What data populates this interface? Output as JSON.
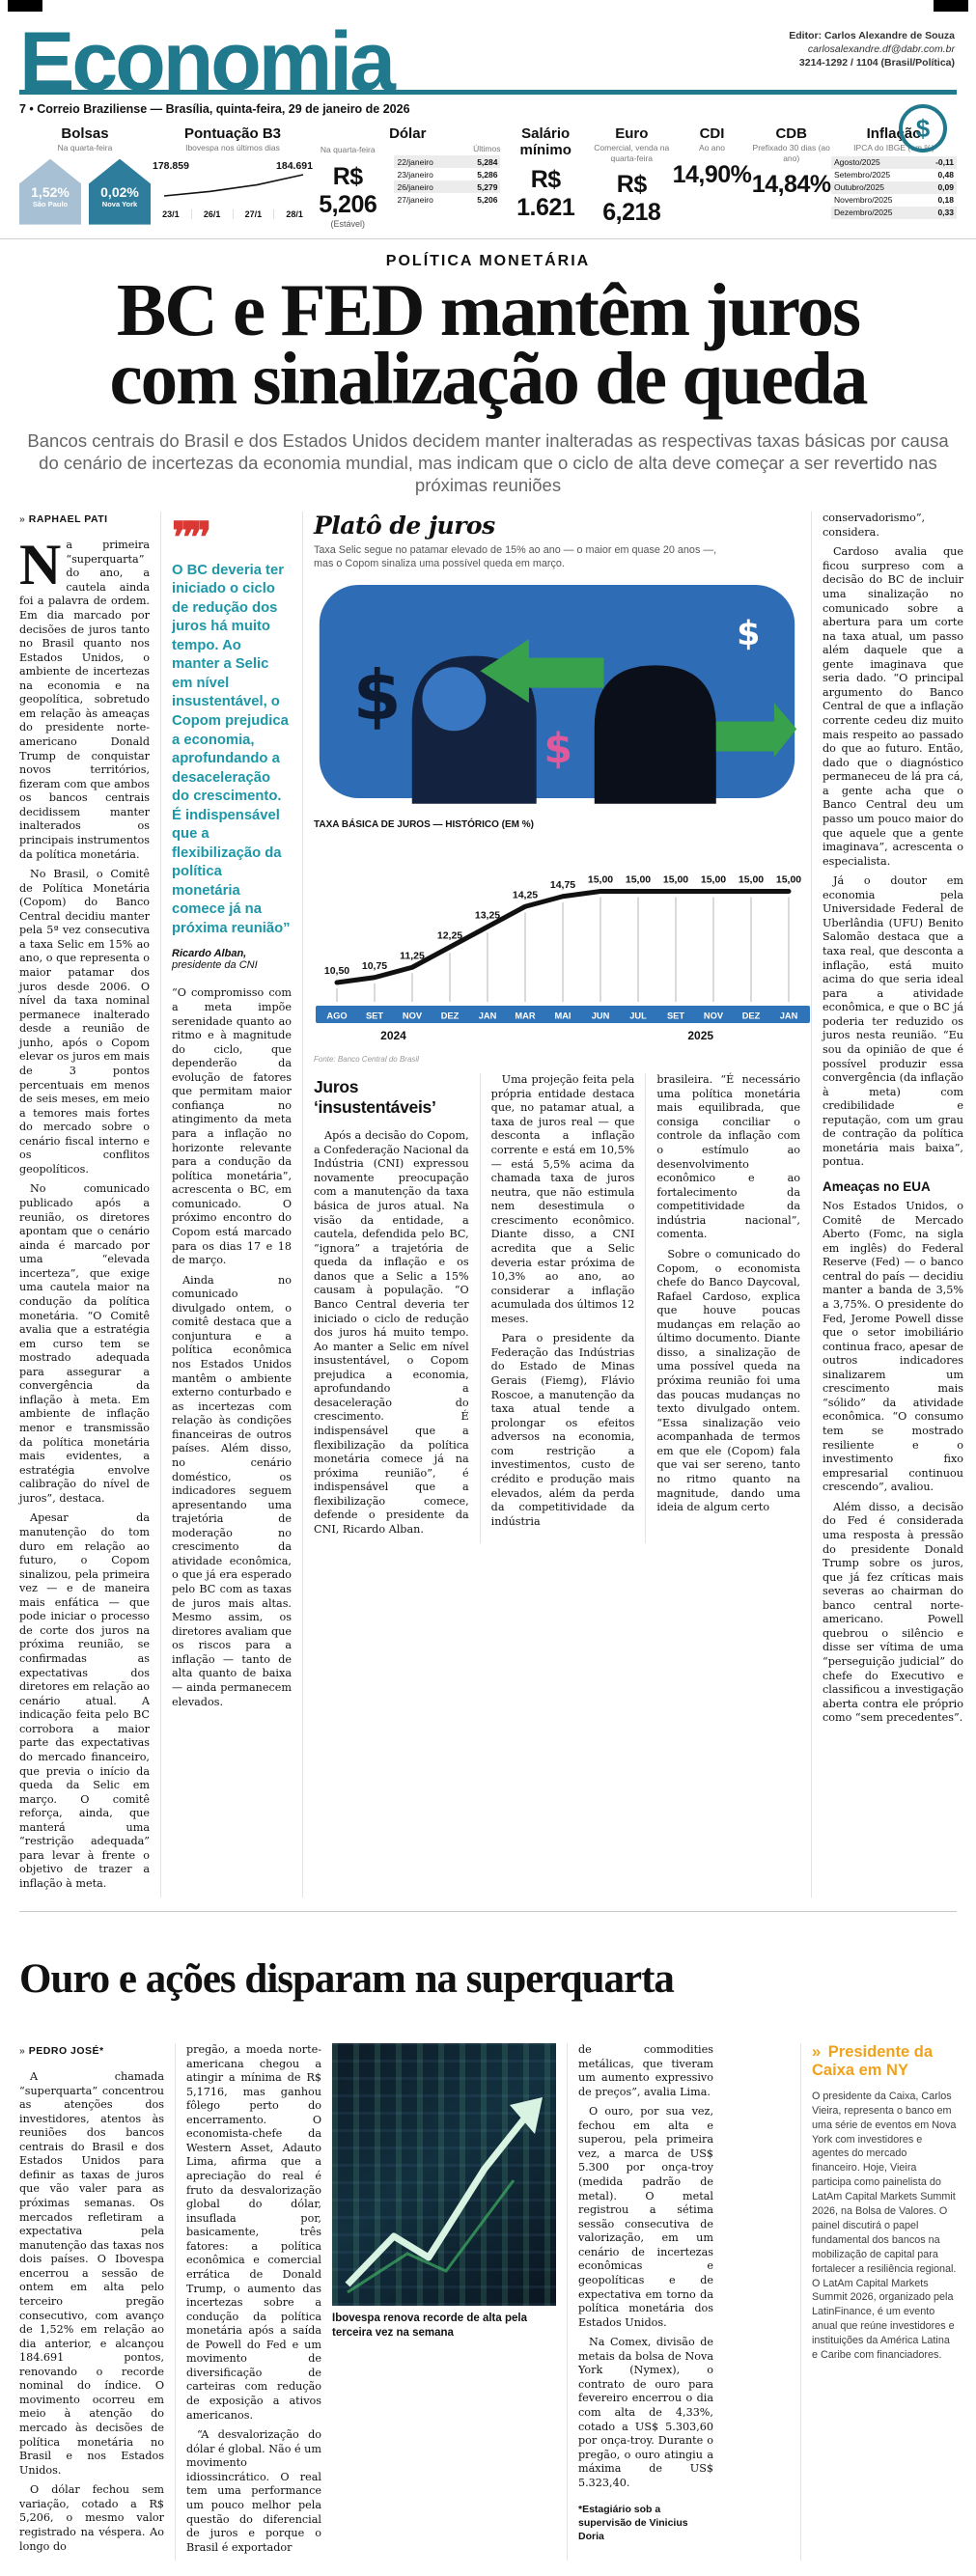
{
  "header": {
    "logo": "Economia",
    "editor_label": "Editor: Carlos Alexandre de Souza",
    "editor_email": "carlosalexandre.df@dabr.com.br",
    "editor_phone": "3214-1292 / 1104 (Brasil/Política)",
    "coin_glyph": "$",
    "folio": "7 • Correio Braziliense — Brasília, quinta-feira, 29 de janeiro de 2026"
  },
  "colors": {
    "teal": "#20798d",
    "quote_teal": "#1d96a7",
    "quote_red": "#da3832",
    "chart_blue": "#2f73b8",
    "illus_blue": "#2e6cb5",
    "arrow_green": "#37a14c",
    "sidebar_orange": "#f0a21c",
    "house_light": "#a7c0d3",
    "house_teal": "#2e7d9c"
  },
  "indicators": {
    "bolsas": {
      "title": "Bolsas",
      "subtitle": "Na quarta-feira",
      "items": [
        {
          "value": "1,52%",
          "label": "São Paulo"
        },
        {
          "value": "0,02%",
          "label": "Nova York"
        }
      ]
    },
    "b3": {
      "title": "Pontuação B3",
      "subtitle": "Ibovespa nos últimos dias",
      "start_label": "178.859",
      "end_label": "184.691",
      "dates": [
        "23/1",
        "26/1",
        "27/1",
        "28/1"
      ]
    },
    "dolar": {
      "title": "Dólar",
      "subtitle": "Na quarta-feira",
      "value": "R$ 5,206",
      "note": "(Estável)",
      "ultimos_label": "Últimos",
      "rows": [
        [
          "22/janeiro",
          "5,284"
        ],
        [
          "23/janeiro",
          "5,286"
        ],
        [
          "26/janeiro",
          "5,279"
        ],
        [
          "27/janeiro",
          "5,206"
        ]
      ]
    },
    "salario": {
      "title": "Salário mínimo",
      "value": "R$ 1.621"
    },
    "euro": {
      "title": "Euro",
      "subtitle": "Comercial, venda na quarta-feira",
      "value": "R$ 6,218"
    },
    "cdi": {
      "title": "CDI",
      "subtitle": "Ao ano",
      "value": "14,90%"
    },
    "cdb": {
      "title": "CDB",
      "subtitle": "Prefixado 30 dias (ao ano)",
      "value": "14,84%"
    },
    "inflacao": {
      "title": "Inflação",
      "subtitle": "IPCA do IBGE (em %)",
      "rows": [
        [
          "Agosto/2025",
          "-0,11"
        ],
        [
          "Setembro/2025",
          "0,48"
        ],
        [
          "Outubro/2025",
          "0,09"
        ],
        [
          "Novembro/2025",
          "0,18"
        ],
        [
          "Dezembro/2025",
          "0,33"
        ]
      ]
    }
  },
  "lead": {
    "kicker": "POLÍTICA MONETÁRIA",
    "headline_line1": "BC e FED mantêm juros",
    "headline_line2": "com sinalização de queda",
    "deck": "Bancos centrais do Brasil e dos Estados Unidos decidem manter inalteradas as respectivas taxas básicas por causa do cenário de incertezas da economia mundial, mas indicam que o ciclo de alta deve começar a ser revertido nas próximas reuniões",
    "byline_marker": "»",
    "byline": "RAPHAEL PATI"
  },
  "article1": {
    "col1": {
      "dropcap": "N",
      "p1": "a primeira “superquarta” do ano, a cautela ainda foi a palavra de ordem. Em dia marcado por decisões de juros tanto no Brasil quanto nos Estados Unidos, o ambiente de incertezas na economia e na geopolítica, sobretudo em relação às ameaças do presidente norte-americano Donald Trump de conquistar novos territórios, fizeram com que ambos os bancos centrais decidissem manter inalterados os principais instrumentos da política monetária.",
      "p2": "No Brasil, o Comitê de Política Monetária (Copom) do Banco Central decidiu manter pela 5ª vez consecutiva a taxa Selic em 15% ao ano, o que representa o maior patamar dos juros desde 2006. O nível da taxa nominal permanece inalterado desde a reunião de junho, após o Copom elevar os juros em mais de 3 pontos percentuais em menos de seis meses, em meio a temores mais fortes do mercado sobre o cenário fiscal interno e os conflitos geopolíticos.",
      "p3": "No comunicado publicado após a reunião, os diretores apontam que o cenário ainda é marcado por uma “elevada incerteza”, que exige uma cautela maior na condução da política monetária. “O Comitê avalia que a estratégia em curso tem se mostrado adequada para assegurar a convergência da inflação à meta. Em ambiente de inflação menor e transmissão da política monetária mais evidentes, a estratégia envolve calibração do nível de juros”, destaca.",
      "p4": "Apesar da manutenção do tom duro em relação ao futuro, o Copom sinalizou, pela primeira vez — e de maneira mais enfática — que pode iniciar o processo de corte dos juros na próxima reunião, se confirmadas as expectativas dos diretores em relação ao cenário atual. A indicação feita pelo BC corrobora a maior parte das expectativas do mercado financeiro, que previa o início da queda da Selic em março. O comitê reforça, ainda, que manterá uma “restrição adequada” para levar à frente o objetivo de trazer a inflação à meta."
    },
    "quote": {
      "icon": "❞❞",
      "text": "O BC deveria ter iniciado o ciclo de redução dos juros há muito tempo. Ao manter a Selic em nível insustentável, o Copom prejudica a economia, aprofundando a desaceleração do crescimento. É indispensável que a flexibilização da política monetária comece já na próxima reunião”",
      "author": "Ricardo Alban,",
      "role": "presidente da CNI"
    },
    "col2": {
      "p1": "“O compromisso com a meta impõe serenidade quanto ao ritmo e à magnitude do ciclo, que dependerão da evolução de fatores que permitam maior confiança no atingimento da meta para a inflação no horizonte relevante para a condução da política monetária”, acrescenta o BC, em comunicado. O próximo encontro do Copom está marcado para os dias 17 e 18 de março.",
      "p2": "Ainda no comunicado divulgado ontem, o comitê destaca que a conjuntura e a política econômica nos Estados Unidos mantêm o ambiente externo conturbado e as incertezas com relação às condições financeiras de outros países. Além disso, no cenário doméstico, os indicadores seguem apresentando uma trajetória de moderação no crescimento da atividade econômica, o que já era esperado pelo BC com as taxas de juros mais altas. Mesmo assim, os diretores avaliam que os riscos para a inflação — tanto de alta quanto de baixa — ainda permanecem elevados."
    },
    "infographic": {
      "title": "Platô de juros",
      "subtitle": "Taxa Selic segue no patamar elevado de 15% ao ano — o maior em quase 20 anos —, mas o Copom sinaliza uma possível queda em março.",
      "chart_label": "TAXA BÁSICA DE JUROS — HISTÓRICO (EM %)",
      "source": "Fonte: Banco Central do Brasil"
    },
    "section2": {
      "heading": "Juros ‘insustentáveis’",
      "colA_p1": "Após a decisão do Copom, a Confederação Nacional da Indústria (CNI) expressou novamente preocupação com a manutenção da taxa básica de juros atual. Na visão da entidade, a cautela, defendida pelo BC, “ignora” a trajetória de queda da inflação e os danos que a Selic a 15% causam à população. “O Banco Central deveria ter iniciado o ciclo de redução dos juros há muito tempo. Ao manter a Selic em nível insustentável, o Copom prejudica a economia, aprofundando a desaceleração do crescimento. É indispensável que a flexibilização da política monetária comece já na próxima reunião”, é indispensável que a flexibilização comece, defende o presidente da CNI, Ricardo Alban.",
      "colB_p1": "Uma projeção feita pela própria entidade destaca que, no patamar atual, a taxa de juros real — que desconta a inflação corrente e está em 10,5% — está 5,5% acima da chamada taxa de juros neutra, que não estimula nem desestimula o crescimento econômico. Diante disso, a CNI acredita que a Selic deveria estar próxima de 10,3% ao ano, ao considerar a inflação acumulada dos últimos 12 meses.",
      "colB_p2": "Para o presidente da Federação das Indústrias do Estado de Minas Gerais (Fiemg), Flávio Roscoe, a manutenção da taxa atual tende a prolongar os efeitos adversos na economia, com restrição a investimentos, custo de crédito e produção mais elevados, além da perda da competitividade da indústria",
      "colC_p1": "brasileira. “É necessário uma política monetária mais equilibrada, que consiga conciliar o controle da inflação com o estímulo ao desenvolvimento econômico e ao fortalecimento da competitividade da indústria nacional”, comenta.",
      "colC_p2": "Sobre o comunicado do Copom, o economista chefe do Banco Daycoval, Rafael Cardoso, explica que houve poucas mudanças em relação ao último documento. Diante disso, a sinalização de uma possível queda na próxima reunião foi uma das poucas mudanças no texto divulgado ontem. “Essa sinalização veio acompanhada de termos em que ele (Copom) fala que vai ser sereno, tanto no ritmo quanto na magnitude, dando uma ideia de algum certo"
    },
    "col6": {
      "p1": "conservadorismo”, considera.",
      "p2": "Cardoso avalia que ficou surpreso com a decisão do BC de incluir uma sinalização no comunicado sobre a abertura para um corte na taxa atual, um passo além daquele que a gente imaginava que seria dado. “O principal argumento do Banco Central de que a inflação corrente cedeu diz muito mais respeito ao passado do que ao futuro. Então, dado que o diagnóstico permaneceu de lá pra cá, a gente acha que o Banco Central deu um passo um pouco maior do que aquele que a gente imaginava”, acrescenta o especialista.",
      "p3": "Já o doutor em economia pela Universidade Federal de Uberlândia (UFU) Benito Salomão destaca que a taxa real, que desconta a inflação, está muito acima do que seria ideal para a atividade econômica, e que o BC já poderia ter reduzido os juros nesta reunião. “Eu sou da opinião de que é possível produzir essa convergência (da inflação à meta) com credibilidade e reputação, com um grau de contração da política monetária mais baixa”, pontua.",
      "subhead": "Ameaças no EUA",
      "p4": "Nos Estados Unidos, o Comitê de Mercado Aberto (Fomc, na sigla em inglês) do Federal Reserve (Fed) — o banco central do país — decidiu manter a banda de 3,5% a 3,75%. O presidente do Fed, Jerome Powell disse que o setor imobiliário continua fraco, apesar de outros indicadores sinalizarem um crescimento mais “sólido” da atividade econômica. “O consumo tem se mostrado resiliente e o investimento fixo empresarial continuou crescendo”, avaliou.",
      "p5": "Além disso, a decisão do Fed é considerada uma resposta à pressão do presidente Donald Trump sobre os juros, que já fez críticas mais severas ao chairman do banco central norte-americano. Powell quebrou o silêncio e disse ser vítima de uma “perseguição judicial” do chefe do Executivo e classificou a investigação aberta contra ele próprio como “sem precedentes”."
    }
  },
  "chart_data": [
    {
      "type": "line",
      "title": "TAXA BÁSICA DE JUROS — HISTÓRICO (EM %)",
      "x": [
        "AGO",
        "SET",
        "NOV",
        "DEZ",
        "JAN",
        "MAR",
        "MAI",
        "JUN",
        "JUL",
        "SET",
        "NOV",
        "DEZ",
        "JAN"
      ],
      "year_groups": [
        {
          "year": "2024",
          "count": 4
        },
        {
          "year": "2025",
          "count": 9
        }
      ],
      "values": [
        10.5,
        10.75,
        11.25,
        12.25,
        13.25,
        14.25,
        14.75,
        15.0,
        15.0,
        15.0,
        15.0,
        15.0,
        15.0
      ],
      "value_labels": [
        "10,50",
        "10,75",
        "11,25",
        "12,25",
        "13,25",
        "14,25",
        "14,75",
        "15,00",
        "15,00",
        "15,00",
        "15,00",
        "15,00",
        "15,00"
      ],
      "ylim": [
        10,
        16
      ],
      "source": "Fonte: Banco Central do Brasil",
      "legend_position": "none",
      "grid": true
    },
    {
      "type": "line",
      "title": "Pontuação B3 — Ibovespa nos últimos dias",
      "x": [
        "23/1",
        "26/1",
        "27/1",
        "28/1"
      ],
      "values": [
        178859,
        180100,
        181900,
        184691
      ],
      "endpoint_labels": [
        "178.859",
        "184.691"
      ],
      "legend_position": "none",
      "grid": false
    }
  ],
  "article2": {
    "headline": "Ouro e ações disparam na superquarta",
    "byline_marker": "»",
    "byline": "PEDRO JOSÉ*",
    "col1_p1": "A chamada “superquarta” concentrou as atenções dos investidores, atentos às reuniões dos bancos centrais do Brasil e dos Estados Unidos para definir as taxas de juros que vão valer para as próximas semanas. Os mercados refletiram a expectativa pela manutenção das taxas nos dois países. O Ibovespa encerrou a sessão de ontem em alta pelo terceiro pregão consecutivo, com avanço de 1,52% em relação ao dia anterior, e alcançou 184.691 pontos, renovando o recorde nominal do índice. O movimento ocorreu em meio à atenção do mercado às decisões de política monetária no Brasil e nos Estados Unidos.",
    "col1_p2": "O dólar fechou sem variação, cotado a R$ 5,206, o mesmo valor registrado na véspera. Ao longo do",
    "col2_p1": "pregão, a moeda norte-americana chegou a atingir a mínima de R$ 5,1716, mas ganhou fôlego perto do encerramento. O economista-chefe da Western Asset, Adauto Lima, afirma que a apreciação do real é fruto da desvalorização global do dólar, insuflada por, basicamente, três fatores: a política econômica e comercial errática de Donald Trump, o aumento das incertezas sobre a condução da política monetária após a saída de Powell do Fed e um movimento de diversificação de carteiras com redução de exposição a ativos americanos.",
    "col2_p2": "“A desvalorização do dólar é global. Não é um movimento idiossincrático. O real tem uma performance um pouco melhor pela questão do diferencial de juros e porque o Brasil é exportador",
    "caption": "Ibovespa renova recorde de alta pela terceira vez na semana",
    "col4_p1": "de commodities metálicas, que tiveram um aumento expressivo de preços”, avalia Lima.",
    "col4_p2": "O ouro, por sua vez, fechou em alta e superou, pela primeira vez, a marca de US$ 5.300 por onça-troy (medida padrão de metal). O metal registrou a sétima sessão consecutiva de valorização, em um cenário de incertezas econômicas e geopolíticas e de expectativa em torno da política monetária dos Estados Unidos.",
    "col4_p3": "Na Comex, divisão de metais da bolsa de Nova York (Nymex), o contrato de ouro para fevereiro encerrou o dia com alta de 4,33%, cotado a US$ 5.303,60 por onça-troy. Durante o pregão, o ouro atingiu a máxima de US$ 5.323,40.",
    "footnote": "*Estagiário sob a supervisão de Vinicius Doria"
  },
  "sidebar": {
    "marker": "»",
    "title": "Presidente da Caixa em NY",
    "body": "O presidente da Caixa, Carlos Vieira, representa o banco em uma série de eventos em Nova York com investidores e agentes do mercado financeiro. Hoje, Vieira participa como painelista do LatAm Capital Markets Summit 2026, na Bolsa de Valores. O painel discutirá o papel fundamental dos bancos na mobilização de capital para fortalecer a resiliência regional. O LatAm Capital Markets Summit 2026, organizado pela LatinFinance, é um evento anual que reúne investidores e instituições da América Latina e Caribe com financiadores."
  }
}
